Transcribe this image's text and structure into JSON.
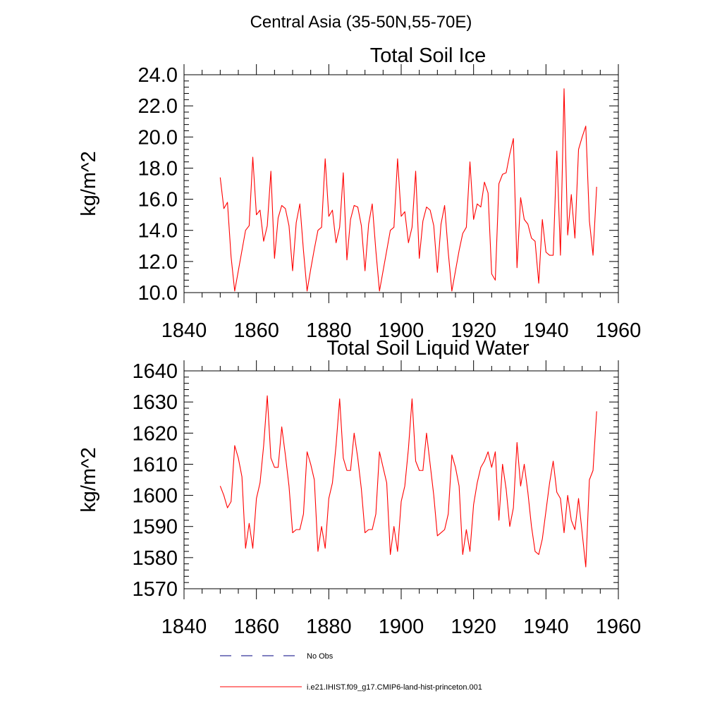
{
  "main_title": "Central Asia (35-50N,55-70E)",
  "legend": {
    "entries": [
      {
        "label": "No Obs",
        "style": "dashed",
        "color": "#000080"
      },
      {
        "label": "i.e21.IHIST.f09_g17.CMIP6-land-hist-princeton.001",
        "style": "solid",
        "color": "#ff0000"
      }
    ]
  },
  "chart_data": [
    {
      "type": "line",
      "title": "Total Soil Ice",
      "xlabel": "",
      "ylabel": "kg/m^2",
      "xlim": [
        1840,
        1960
      ],
      "ylim": [
        10,
        24
      ],
      "x_ticks": [
        1840,
        1860,
        1880,
        1900,
        1920,
        1940,
        1960
      ],
      "x_tick_labels": [
        "1840",
        "1860",
        "1880",
        "1900",
        "1920",
        "1940",
        "1960"
      ],
      "y_ticks": [
        10,
        12,
        14,
        16,
        18,
        20,
        22,
        24
      ],
      "y_tick_labels": [
        "10.0",
        "12.0",
        "14.0",
        "16.0",
        "18.0",
        "20.0",
        "22.0",
        "24.0"
      ],
      "grid": false,
      "series": [
        {
          "name": "i.e21.IHIST.f09_g17.CMIP6-land-hist-princeton.001",
          "color": "#ff0000",
          "x_start": 1850,
          "x_step": 1,
          "values": [
            17.4,
            15.4,
            15.8,
            12.3,
            10.1,
            11.4,
            12.7,
            14.0,
            14.3,
            18.7,
            15.0,
            15.3,
            13.3,
            14.3,
            17.8,
            12.2,
            14.8,
            15.6,
            15.4,
            14.3,
            11.4,
            14.5,
            15.7,
            12.7,
            10.1,
            11.5,
            12.8,
            14.0,
            14.2,
            18.6,
            14.9,
            15.3,
            13.2,
            14.2,
            17.7,
            12.1,
            14.7,
            15.6,
            15.5,
            14.3,
            11.4,
            14.4,
            15.7,
            12.7,
            10.1,
            11.4,
            12.7,
            14.0,
            14.2,
            18.6,
            14.9,
            15.2,
            13.2,
            14.2,
            17.8,
            12.2,
            14.6,
            15.5,
            15.3,
            14.3,
            11.3,
            14.4,
            15.6,
            12.6,
            10.1,
            11.4,
            12.7,
            13.8,
            14.2,
            18.4,
            14.7,
            15.7,
            15.5,
            17.1,
            16.4,
            11.2,
            10.8,
            17.0,
            17.6,
            17.7,
            18.9,
            19.9,
            11.6,
            16.1,
            14.7,
            14.4,
            13.5,
            13.3,
            10.6,
            14.7,
            12.6,
            12.4,
            12.4,
            19.1,
            12.4,
            23.1,
            13.7,
            16.3,
            13.5,
            19.2,
            20.0,
            20.7,
            14.6,
            12.4,
            16.8
          ]
        }
      ]
    },
    {
      "type": "line",
      "title": "Total Soil Liquid Water",
      "xlabel": "",
      "ylabel": "kg/m^2",
      "xlim": [
        1840,
        1960
      ],
      "ylim": [
        1570,
        1640
      ],
      "x_ticks": [
        1840,
        1860,
        1880,
        1900,
        1920,
        1940,
        1960
      ],
      "x_tick_labels": [
        "1840",
        "1860",
        "1880",
        "1900",
        "1920",
        "1940",
        "1960"
      ],
      "y_ticks": [
        1570,
        1580,
        1590,
        1600,
        1610,
        1620,
        1630,
        1640
      ],
      "y_tick_labels": [
        "1570",
        "1580",
        "1590",
        "1600",
        "1610",
        "1620",
        "1630",
        "1640"
      ],
      "grid": false,
      "series": [
        {
          "name": "i.e21.IHIST.f09_g17.CMIP6-land-hist-princeton.001",
          "color": "#ff0000",
          "x_start": 1850,
          "x_step": 1,
          "values": [
            1603,
            1600,
            1596,
            1598,
            1616,
            1612,
            1606,
            1583,
            1591,
            1583,
            1599,
            1604,
            1616,
            1632,
            1612,
            1609,
            1609,
            1622,
            1613,
            1603,
            1588,
            1589,
            1589,
            1594,
            1614,
            1610,
            1605,
            1582,
            1590,
            1583,
            1599,
            1604,
            1616,
            1631,
            1612,
            1608,
            1608,
            1620,
            1612,
            1602,
            1588,
            1589,
            1589,
            1594,
            1614,
            1609,
            1604,
            1581,
            1590,
            1582,
            1598,
            1603,
            1615,
            1631,
            1611,
            1608,
            1608,
            1620,
            1610,
            1600,
            1587,
            1588,
            1589,
            1594,
            1613,
            1609,
            1603,
            1581,
            1589,
            1582,
            1597,
            1604,
            1609,
            1611,
            1614,
            1609,
            1614,
            1592,
            1610,
            1602,
            1590,
            1596,
            1617,
            1603,
            1610,
            1601,
            1590,
            1582,
            1581,
            1586,
            1595,
            1604,
            1611,
            1601,
            1599,
            1588,
            1600,
            1592,
            1589,
            1599,
            1588,
            1577,
            1605,
            1608,
            1627
          ]
        }
      ]
    }
  ]
}
